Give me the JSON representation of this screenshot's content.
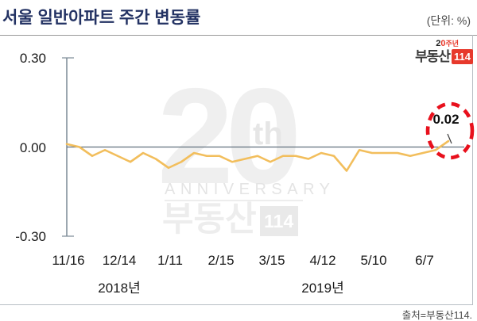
{
  "header": {
    "title": "서울 일반아파트 주간 변동률",
    "unit_label": "(단위: %)"
  },
  "logo": {
    "anniversary_2": "2",
    "anniversary_0": "0",
    "anniversary_suffix": "주년",
    "brand": "부동산",
    "brand_number": "114"
  },
  "watermark": {
    "big_number": "20",
    "suffix": "th",
    "anniversary": "ANNIVERSARY",
    "brand": "부동산",
    "brand_number": "114"
  },
  "chart_data": {
    "type": "line",
    "title": "서울 일반아파트 주간 변동률",
    "unit": "%",
    "ylim": [
      -0.3,
      0.3
    ],
    "grid": false,
    "legend": false,
    "line_color": "#F2BE5C",
    "y_tick_labels": [
      "0.30",
      "0.00",
      "-0.30"
    ],
    "y_tick_values": [
      0.3,
      0.0,
      -0.3
    ],
    "x_tick_labels": [
      "11/16",
      "12/14",
      "1/11",
      "2/15",
      "3/15",
      "4/12",
      "5/10",
      "6/7"
    ],
    "x_tick_point_indices": [
      0,
      4,
      8,
      12,
      16,
      20,
      24,
      28
    ],
    "year_labels": [
      {
        "text": "2018년",
        "point_index": 4
      },
      {
        "text": "2019년",
        "point_index": 20
      }
    ],
    "values": [
      0.01,
      0.0,
      -0.03,
      -0.01,
      -0.03,
      -0.05,
      -0.02,
      -0.04,
      -0.07,
      -0.05,
      -0.02,
      -0.03,
      -0.03,
      -0.05,
      -0.04,
      -0.03,
      -0.05,
      -0.03,
      -0.03,
      -0.04,
      -0.02,
      -0.03,
      -0.08,
      -0.01,
      -0.02,
      -0.02,
      -0.02,
      -0.03,
      -0.02,
      -0.01,
      0.02
    ],
    "last_value": 0.02,
    "annotation": {
      "text": "0.02",
      "style": "red-dashed-ellipse",
      "circle_color": "#E8101C"
    }
  },
  "footer": {
    "source": "출처=부동산114."
  }
}
